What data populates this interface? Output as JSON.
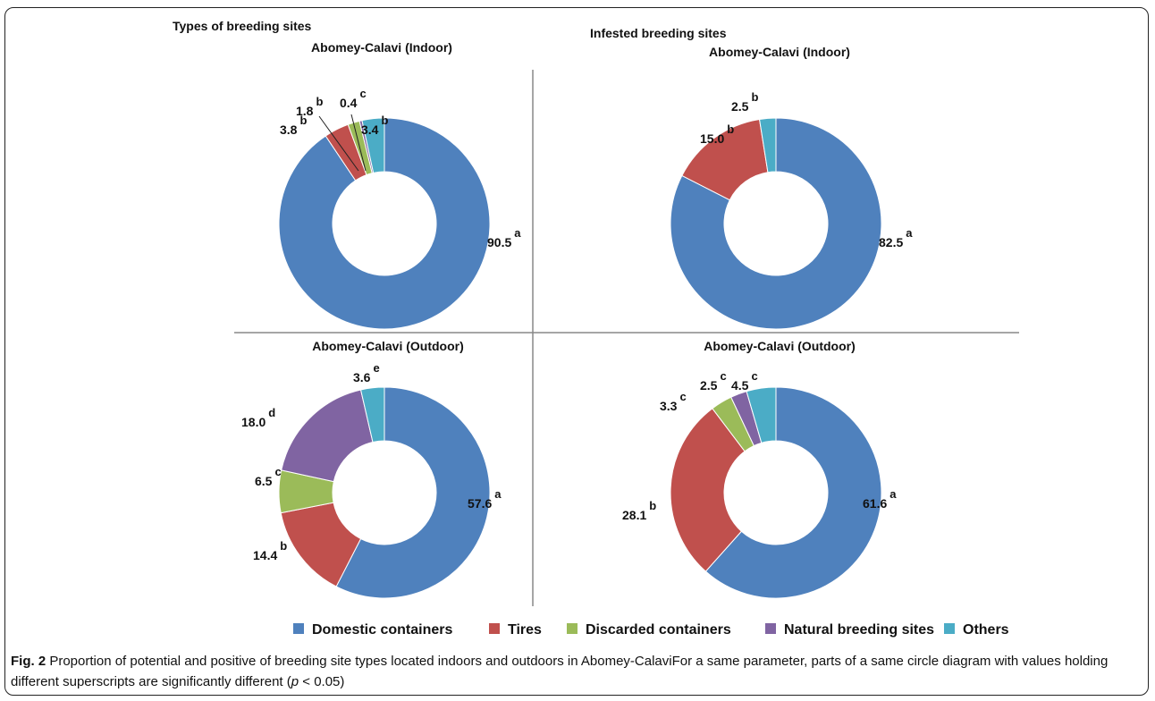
{
  "figure": {
    "left_heading": "Types of breeding sites",
    "right_heading": "Infested breeding sites"
  },
  "colors": {
    "Domestic containers": "#4f81bd",
    "Tires": "#c0504d",
    "Discarded containers": "#9bbb59",
    "Natural breeding sites": "#8064a2",
    "Others": "#4bacc6"
  },
  "legend": [
    "Domestic containers",
    "Tires",
    "Discarded containers",
    "Natural breeding sites",
    "Others"
  ],
  "chart_data": [
    {
      "type": "pie",
      "title": "Abomey-Calavi (Indoor)",
      "slices": [
        {
          "category": "Domestic containers",
          "value": 90.5,
          "label": "90.5",
          "sup": "a"
        },
        {
          "category": "Tires",
          "value": 3.8,
          "label": "3.8",
          "sup": "b"
        },
        {
          "category": "Discarded containers",
          "value": 1.8,
          "label": "1.8",
          "sup": "b"
        },
        {
          "category": "Natural breeding sites",
          "value": 0.4,
          "label": "0.4",
          "sup": "c"
        },
        {
          "category": "Others",
          "value": 3.4,
          "label": "3.4",
          "sup": "b"
        }
      ]
    },
    {
      "type": "pie",
      "title": "Abomey-Calavi (Indoor)",
      "slices": [
        {
          "category": "Domestic containers",
          "value": 82.5,
          "label": "82.5",
          "sup": "a"
        },
        {
          "category": "Tires",
          "value": 15.0,
          "label": "15.0",
          "sup": "b"
        },
        {
          "category": "Others",
          "value": 2.5,
          "label": "2.5",
          "sup": "b"
        }
      ]
    },
    {
      "type": "pie",
      "title": "Abomey-Calavi (Outdoor)",
      "slices": [
        {
          "category": "Domestic containers",
          "value": 57.6,
          "label": "57.6",
          "sup": "a"
        },
        {
          "category": "Tires",
          "value": 14.4,
          "label": "14.4",
          "sup": "b"
        },
        {
          "category": "Discarded containers",
          "value": 6.5,
          "label": "6.5",
          "sup": "c"
        },
        {
          "category": "Natural breeding sites",
          "value": 18.0,
          "label": "18.0",
          "sup": "d"
        },
        {
          "category": "Others",
          "value": 3.6,
          "label": "3.6",
          "sup": "e"
        }
      ]
    },
    {
      "type": "pie",
      "title": "Abomey-Calavi (Outdoor)",
      "slices": [
        {
          "category": "Domestic containers",
          "value": 61.6,
          "label": "61.6",
          "sup": "a"
        },
        {
          "category": "Tires",
          "value": 28.1,
          "label": "28.1",
          "sup": "b"
        },
        {
          "category": "Discarded containers",
          "value": 3.3,
          "label": "3.3",
          "sup": "c"
        },
        {
          "category": "Natural breeding sites",
          "value": 2.5,
          "label": "2.5",
          "sup": "c"
        },
        {
          "category": "Others",
          "value": 4.5,
          "label": "4.5",
          "sup": "c"
        }
      ]
    }
  ],
  "caption": {
    "label": "Fig. 2",
    "text_before_p": " Proportion of potential and positive of breeding site types located indoors and outdoors in Abomey-CalaviFor a same parameter, parts of a same circle diagram with values holding different superscripts are significantly different (",
    "p_symbol": "p",
    "text_after_p": " < 0.05)"
  }
}
